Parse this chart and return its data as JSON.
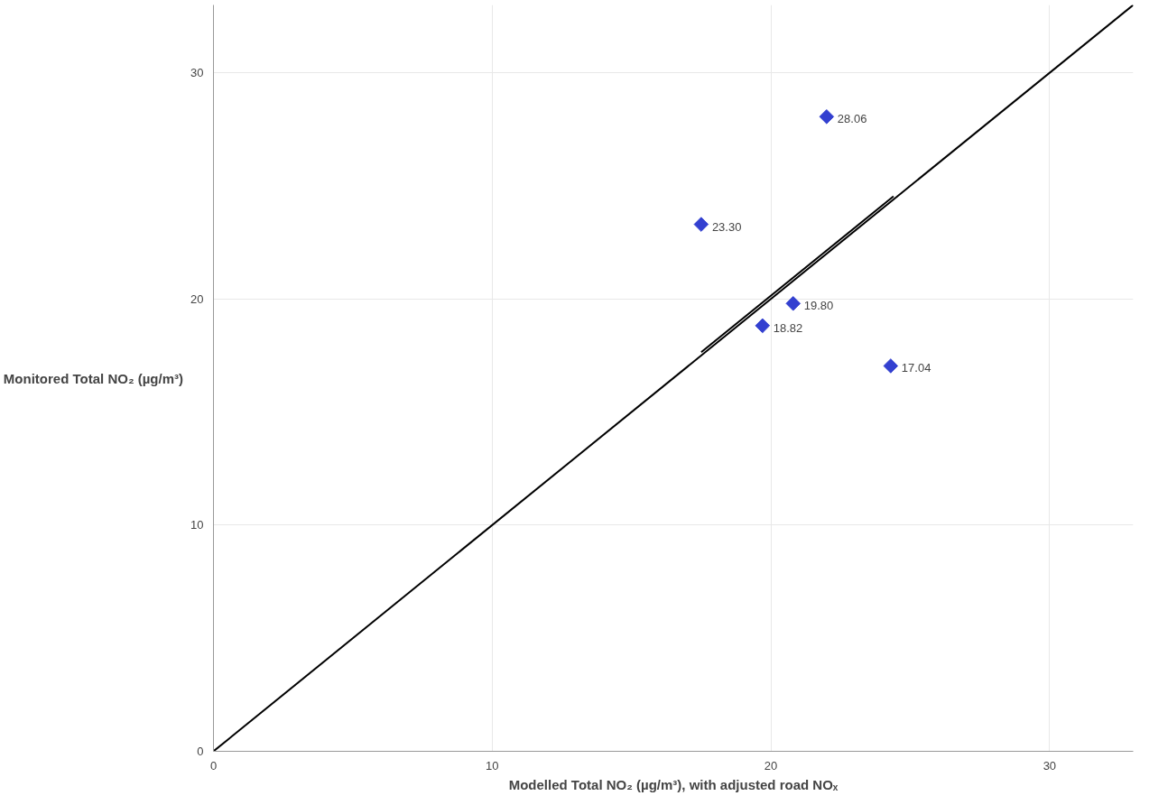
{
  "chart_data": {
    "type": "scatter",
    "xlabel": "Modelled Total NO₂ (µg/m³), with adjusted road NOₓ",
    "ylabel": "Monitored Total NO₂ (µg/m³)",
    "xlim": [
      0,
      33
    ],
    "ylim": [
      0,
      33
    ],
    "xticks": [
      0,
      10,
      20,
      30
    ],
    "yticks": [
      0,
      10,
      20,
      30
    ],
    "grid": true,
    "series": [
      {
        "color": "#3340d0",
        "marker": "diamond",
        "x": [
          17.5,
          22.0,
          20.8,
          19.7,
          24.3
        ],
        "values": [
          23.3,
          28.06,
          19.8,
          18.82,
          17.04
        ],
        "value_labels": [
          "23.30",
          "28.06",
          "19.80",
          "18.82",
          "17.04"
        ]
      },
      {
        "type": "line",
        "color": "#000000",
        "x": [
          0,
          33
        ],
        "values": [
          0,
          33
        ]
      },
      {
        "type": "line",
        "color": "#000000",
        "x": [
          17.5,
          24.4
        ],
        "values": [
          17.65,
          24.54
        ]
      }
    ]
  }
}
